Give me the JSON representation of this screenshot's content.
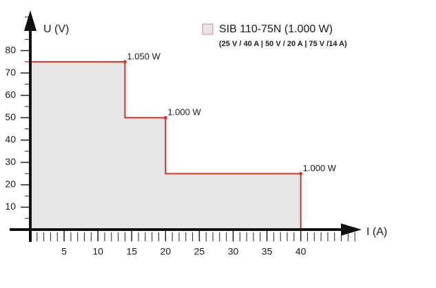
{
  "chart_data": {
    "type": "step-area",
    "subtitle": "(25 V / 40 A | 50 V / 20 A | 75 V /14 A)",
    "x_label": "I (A)",
    "y_label": "U (V)",
    "series": [
      {
        "name": "SIB 110-75N (1.000 W)",
        "color": "#d8322a",
        "fill": "#e6e6e6",
        "x": [
          0,
          14,
          14,
          20,
          20,
          40,
          40
        ],
        "values": [
          75,
          75,
          50,
          50,
          25,
          25,
          0
        ]
      }
    ],
    "annotations": [
      {
        "x": 14,
        "y": 75,
        "text": "1.050 W"
      },
      {
        "x": 20,
        "y": 50,
        "text": "1.000 W"
      },
      {
        "x": 40,
        "y": 25,
        "text": "1.000 W"
      }
    ],
    "xlim": [
      0,
      49
    ],
    "ylim": [
      0,
      98
    ],
    "xticks": [
      5,
      10,
      15,
      20,
      25,
      30,
      35,
      40
    ],
    "yticks": [
      10,
      20,
      30,
      40,
      50,
      60,
      70,
      80
    ],
    "xminor": 1,
    "yminor": 5
  }
}
